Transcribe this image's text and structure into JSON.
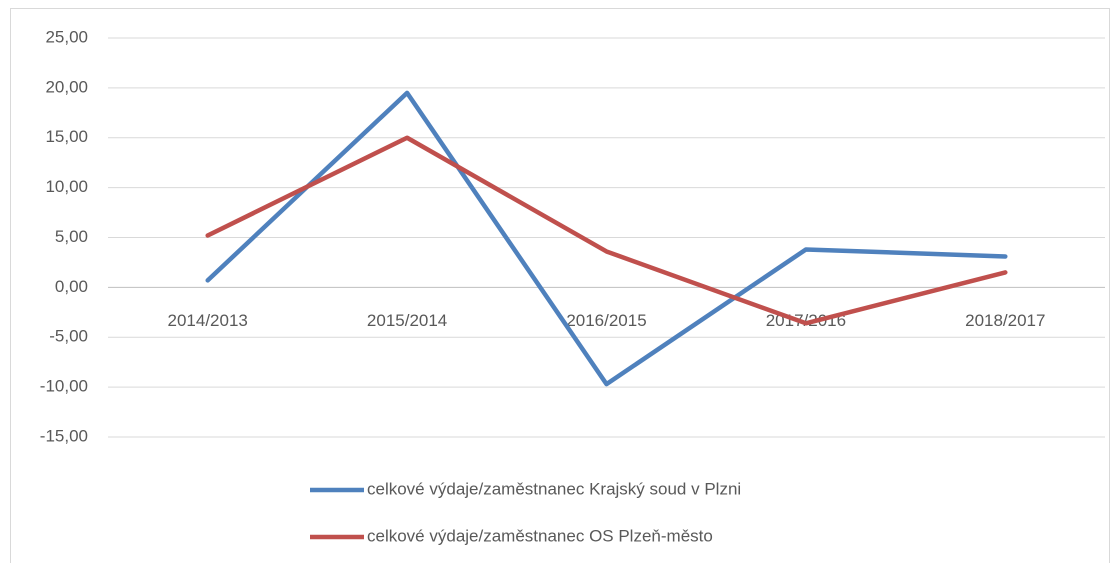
{
  "chart_data": {
    "type": "line",
    "categories": [
      "2014/2013",
      "2015/2014",
      "2016/2015",
      "2017/2016",
      "2018/2017"
    ],
    "series": [
      {
        "name": "celkové výdaje/zaměstnanec Krajský soud v Plzni",
        "color": "#4f81bd",
        "values": [
          0.7,
          19.5,
          -9.7,
          3.8,
          3.1
        ]
      },
      {
        "name": "celkové výdaje/zaměstnanec OS Plzeň-město",
        "color": "#c0504d",
        "values": [
          5.2,
          15.0,
          3.6,
          -3.6,
          1.5
        ]
      }
    ],
    "ylim": [
      -15,
      25
    ],
    "yticks": [
      {
        "value": -15,
        "label": "-15,00"
      },
      {
        "value": -10,
        "label": "-10,00"
      },
      {
        "value": -5,
        "label": "-5,00"
      },
      {
        "value": 0,
        "label": "0,00"
      },
      {
        "value": 5,
        "label": "5,00"
      },
      {
        "value": 10,
        "label": "10,00"
      },
      {
        "value": 15,
        "label": "15,00"
      },
      {
        "value": 20,
        "label": "20,00"
      },
      {
        "value": 25,
        "label": "25,00"
      }
    ],
    "grid": true,
    "legend": "bottom"
  }
}
